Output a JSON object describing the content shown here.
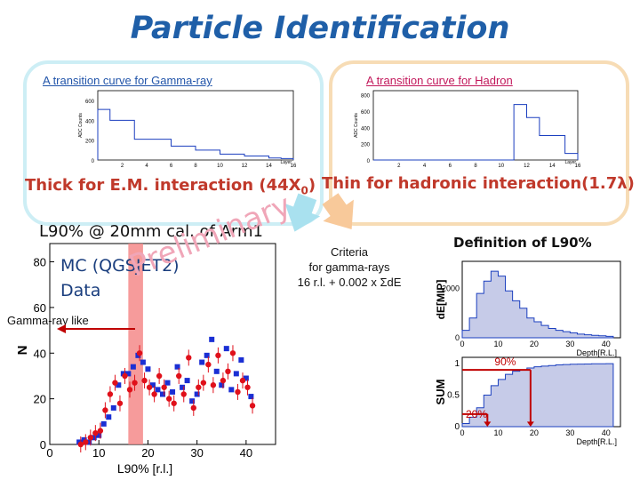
{
  "title": "Particle Identification",
  "gamma_panel": {
    "caption": "A transition curve for Gamma-ray",
    "y_axis": "ADC Counts",
    "x_axis": "Layer",
    "yticks": [
      "600",
      "400",
      "200",
      "0"
    ],
    "xticks": [
      "2",
      "4",
      "6",
      "8",
      "10",
      "12",
      "14",
      "16"
    ]
  },
  "hadron_panel": {
    "caption": "A transition curve for Hadron",
    "y_axis": "ADC Counts",
    "x_axis": "Layer",
    "yticks": [
      "800",
      "600",
      "400",
      "200",
      "0"
    ],
    "xticks": [
      "2",
      "4",
      "6",
      "8",
      "10",
      "12",
      "14",
      "16"
    ]
  },
  "thick_label": "Thick for E.M. interaction (44X",
  "thick_sub": "0",
  "thick_close": ")",
  "thin_label": "Thin for hadronic interaction(1.7λ)",
  "l90_label": "L90% @ 20mm cal. of Arm1",
  "mc_label": "MC (QGSJET2)",
  "data_label": "Data",
  "gamma_like_label": "Gamma-ray like",
  "watermark": "Preliminary",
  "criteria": {
    "line1": "Criteria",
    "line2": "for gamma-rays",
    "line3": "16 r.l. + 0.002 x ΣdE"
  },
  "definition_label": "Definition of L90%",
  "main_plot": {
    "y_axis": "N",
    "x_axis": "L90% [r.l.]",
    "yticks": [
      "0",
      "20",
      "40",
      "60",
      "80"
    ],
    "xticks": [
      "0",
      "10",
      "20",
      "30",
      "40"
    ]
  },
  "de_plot": {
    "y_axis": "dE[MIP]",
    "x_axis": "Depth[R.L.]",
    "yticks": [
      "0",
      "2000"
    ],
    "xticks": [
      "0",
      "10",
      "20",
      "30",
      "40"
    ]
  },
  "sum_plot": {
    "y_axis": "SUM",
    "x_axis": "Depth[R.L.]",
    "yticks": [
      "0",
      "0.5",
      "1"
    ],
    "xticks": [
      "0",
      "10",
      "20",
      "30",
      "40"
    ],
    "mark_90": "90%",
    "mark_20": "20%"
  },
  "colors": {
    "title": "#1f5fa8",
    "mc_points": "#1a2fd4",
    "data_points": "#e0101a",
    "selection_band": "#f58a8a",
    "red_label": "#c0392b"
  },
  "chart_data": [
    {
      "type": "bar",
      "x": [
        1,
        2,
        3,
        4,
        5,
        6,
        7,
        8,
        9,
        10,
        11,
        12,
        13,
        14,
        15,
        16
      ],
      "values": [
        510,
        400,
        400,
        210,
        210,
        210,
        140,
        140,
        100,
        100,
        60,
        60,
        40,
        40,
        20,
        15
      ],
      "ylim": [
        0,
        700
      ],
      "xlim": [
        0,
        16
      ],
      "title": "",
      "xlabel": "Layer",
      "ylabel": "ADC Counts"
    },
    {
      "type": "bar",
      "x": [
        1,
        2,
        3,
        4,
        5,
        6,
        7,
        8,
        9,
        10,
        11,
        12,
        13,
        14,
        15,
        16
      ],
      "values": [
        0,
        0,
        0,
        0,
        0,
        0,
        0,
        0,
        0,
        0,
        0,
        680,
        520,
        300,
        300,
        80
      ],
      "ylim": [
        0,
        850
      ],
      "xlim": [
        0,
        16
      ],
      "title": "",
      "xlabel": "Layer",
      "ylabel": "ADC Counts"
    },
    {
      "type": "scatter",
      "xlabel": "L90% [r.l.]",
      "ylabel": "N",
      "xlim": [
        0,
        46
      ],
      "ylim": [
        0,
        88
      ],
      "band": [
        16,
        19
      ],
      "series": [
        {
          "name": "MC (QGSJET2)",
          "x": [
            6,
            7,
            8,
            9,
            10,
            11,
            12,
            13,
            14,
            15,
            16,
            17,
            18,
            19,
            20,
            21,
            22,
            23,
            24,
            25,
            26,
            27,
            28,
            29,
            30,
            31,
            32,
            33,
            34,
            35,
            36,
            37,
            38,
            39,
            40,
            41
          ],
          "y": [
            1,
            2,
            1,
            3,
            4,
            9,
            12,
            16,
            26,
            31,
            31,
            34,
            39,
            36,
            33,
            26,
            24,
            22,
            27,
            23,
            34,
            25,
            28,
            19,
            22,
            36,
            39,
            46,
            32,
            26,
            42,
            24,
            31,
            37,
            29,
            21
          ]
        },
        {
          "name": "Data",
          "x": [
            6,
            7,
            8,
            9,
            10,
            11,
            12,
            13,
            14,
            15,
            16,
            17,
            18,
            19,
            20,
            21,
            22,
            23,
            24,
            25,
            26,
            27,
            28,
            29,
            30,
            31,
            32,
            33,
            34,
            35,
            36,
            37,
            38,
            39,
            40,
            41
          ],
          "y": [
            0,
            1,
            3,
            5,
            6,
            15,
            22,
            27,
            18,
            30,
            24,
            27,
            40,
            28,
            25,
            22,
            30,
            25,
            20,
            18,
            30,
            22,
            38,
            16,
            25,
            27,
            35,
            26,
            39,
            28,
            32,
            40,
            23,
            28,
            25,
            17
          ]
        }
      ]
    },
    {
      "type": "area",
      "xlabel": "Depth[R.L.]",
      "ylabel": "dE[MIP]",
      "xlim": [
        0,
        44
      ],
      "ylim": [
        0,
        3100
      ],
      "x": [
        2,
        4,
        6,
        8,
        10,
        12,
        14,
        16,
        18,
        20,
        22,
        24,
        26,
        28,
        30,
        32,
        34,
        36,
        38,
        40,
        42
      ],
      "values": [
        300,
        800,
        1800,
        2300,
        2700,
        2500,
        1900,
        1500,
        1200,
        800,
        650,
        500,
        380,
        300,
        250,
        200,
        150,
        120,
        100,
        80,
        60
      ]
    },
    {
      "type": "area",
      "xlabel": "Depth[R.L.]",
      "ylabel": "SUM",
      "xlim": [
        0,
        44
      ],
      "ylim": [
        0,
        1.1
      ],
      "x": [
        2,
        4,
        6,
        8,
        10,
        12,
        14,
        16,
        18,
        20,
        22,
        24,
        26,
        28,
        30,
        32,
        34,
        36,
        38,
        40,
        42
      ],
      "values": [
        0.05,
        0.15,
        0.3,
        0.5,
        0.65,
        0.75,
        0.83,
        0.88,
        0.9,
        0.93,
        0.95,
        0.96,
        0.97,
        0.98,
        0.985,
        0.99,
        0.993,
        0.995,
        0.997,
        0.998,
        1.0
      ]
    }
  ]
}
